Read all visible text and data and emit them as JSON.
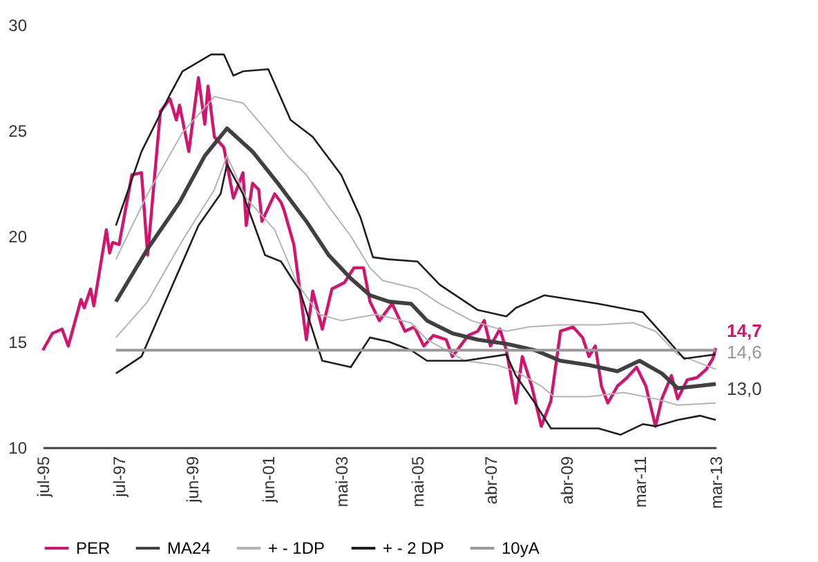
{
  "chart_data": {
    "type": "line",
    "ylim": [
      10,
      30
    ],
    "yticks": [
      10,
      15,
      20,
      25,
      30
    ],
    "xlim": [
      "1995-07",
      "2013-03"
    ],
    "xticks": [
      {
        "value": "1995-07",
        "label": "jul-95"
      },
      {
        "value": "1997-07",
        "label": "jul-97"
      },
      {
        "value": "1999-06",
        "label": "jun-99"
      },
      {
        "value": "2001-06",
        "label": "jun-01"
      },
      {
        "value": "2003-05",
        "label": "mai-03"
      },
      {
        "value": "2005-05",
        "label": "mai-05"
      },
      {
        "value": "2007-04",
        "label": "abr-07"
      },
      {
        "value": "2009-04",
        "label": "abr-09"
      },
      {
        "value": "2011-03",
        "label": "mar-11"
      },
      {
        "value": "2013-03",
        "label": "mar-13"
      }
    ],
    "legend": "bottom",
    "annotations": [
      {
        "text": "14,7",
        "x": "2013-03",
        "y": 14.7
      },
      {
        "text": "14,6",
        "x": "2013-03",
        "y": 14.6
      },
      {
        "text": "13,0",
        "x": "2013-03",
        "y": 13.0
      }
    ],
    "series": [
      {
        "name": "PER",
        "color": "#d4136f",
        "x": [
          "1995-07",
          "1995-10",
          "1996-01",
          "1996-03",
          "1996-07",
          "1996-08",
          "1996-10",
          "1996-11",
          "1997-03",
          "1997-04",
          "1997-05",
          "1997-07",
          "1997-11",
          "1998-02",
          "1998-04",
          "1998-08",
          "1998-11",
          "1999-01",
          "1999-02",
          "1999-05",
          "1999-08",
          "1999-10",
          "1999-11",
          "2000-01",
          "2000-04",
          "2000-07",
          "2000-10",
          "2000-11",
          "2001-01",
          "2001-03",
          "2001-04",
          "2001-08",
          "2001-10",
          "2001-11",
          "2002-02",
          "2002-06",
          "2002-08",
          "2002-11",
          "2003-02",
          "2003-06",
          "2003-09",
          "2003-12",
          "2004-02",
          "2004-05",
          "2004-09",
          "2005-01",
          "2005-04",
          "2005-07",
          "2005-10",
          "2006-02",
          "2006-04",
          "2006-09",
          "2006-12",
          "2007-02",
          "2007-04",
          "2007-07",
          "2007-09",
          "2007-12",
          "2008-02",
          "2008-05",
          "2008-08",
          "2008-11",
          "2009-02",
          "2009-06",
          "2009-09",
          "2009-11",
          "2010-01",
          "2010-03",
          "2010-05",
          "2010-08",
          "2010-11",
          "2011-02",
          "2011-05",
          "2011-08",
          "2011-10",
          "2012-01",
          "2012-03",
          "2012-06",
          "2012-09",
          "2012-12",
          "2013-02",
          "2013-03"
        ],
        "values": [
          14.6,
          15.4,
          15.6,
          14.8,
          17.0,
          16.6,
          17.5,
          16.7,
          20.3,
          19.2,
          19.7,
          19.6,
          22.9,
          23.0,
          19.1,
          25.9,
          26.5,
          25.5,
          26.2,
          24.0,
          27.5,
          25.3,
          27.1,
          24.7,
          24.2,
          21.8,
          23.0,
          20.5,
          22.5,
          22.2,
          20.7,
          22.0,
          21.6,
          21.2,
          19.6,
          15.1,
          17.4,
          15.6,
          17.5,
          17.8,
          18.5,
          18.5,
          16.9,
          16.0,
          16.8,
          15.5,
          15.7,
          14.8,
          15.3,
          15.1,
          14.3,
          15.3,
          15.5,
          16.0,
          14.8,
          15.6,
          14.6,
          12.1,
          14.3,
          12.9,
          11.0,
          12.2,
          15.5,
          15.7,
          15.2,
          14.3,
          14.8,
          12.9,
          12.1,
          12.9,
          13.3,
          13.8,
          12.9,
          11.0,
          12.3,
          13.4,
          12.3,
          13.2,
          13.3,
          13.7,
          14.2,
          14.7
        ]
      },
      {
        "name": "MA24",
        "color": "#404040",
        "x": [
          "1997-06",
          "1998-04",
          "1999-02",
          "1999-10",
          "2000-05",
          "2001-01",
          "2001-09",
          "2002-06",
          "2003-01",
          "2003-08",
          "2004-02",
          "2004-08",
          "2005-03",
          "2005-08",
          "2006-04",
          "2006-12",
          "2007-09",
          "2008-06",
          "2009-02",
          "2009-11",
          "2010-08",
          "2011-03",
          "2011-10",
          "2012-03",
          "2012-09",
          "2013-03"
        ],
        "values": [
          16.9,
          19.4,
          21.6,
          23.8,
          25.1,
          24.0,
          22.5,
          20.7,
          19.1,
          18.0,
          17.2,
          16.9,
          16.8,
          16.0,
          15.4,
          15.1,
          14.9,
          14.6,
          14.1,
          13.9,
          13.6,
          14.1,
          13.5,
          12.8,
          12.9,
          13.0
        ]
      },
      {
        "name": "+ - 1DP",
        "color": "#b4b4b4",
        "x": [
          "1997-06",
          "1998-04",
          "1999-03",
          "2000-01",
          "2000-10",
          "2001-06",
          "2001-12",
          "2002-06",
          "2003-01",
          "2003-08",
          "2004-02",
          "2004-06",
          "2005-05",
          "2005-12",
          "2006-10",
          "2007-09",
          "2008-04",
          "2009-02",
          "2010-02",
          "2011-01",
          "2011-08",
          "2012-03",
          "2013-03"
        ],
        "values": [
          18.9,
          22.0,
          24.9,
          26.6,
          26.3,
          24.9,
          23.8,
          22.9,
          21.4,
          20.0,
          18.5,
          17.9,
          17.5,
          16.8,
          16.0,
          15.5,
          15.7,
          15.8,
          15.8,
          15.9,
          15.5,
          14.4,
          13.7
        ]
      },
      {
        "color": "#b4b4b4",
        "x": [
          "1997-06",
          "1998-04",
          "1999-03",
          "2000-01",
          "2000-05",
          "2000-11",
          "2001-08",
          "2002-03",
          "2002-10",
          "2003-05",
          "2004-04",
          "2005-03",
          "2005-08",
          "2006-08",
          "2007-06",
          "2007-12",
          "2008-08",
          "2008-12",
          "2009-11",
          "2010-10",
          "2011-08",
          "2012-03",
          "2013-03"
        ],
        "values": [
          15.2,
          16.9,
          19.8,
          22.2,
          23.8,
          21.8,
          20.3,
          17.8,
          16.3,
          16.0,
          16.3,
          15.9,
          15.1,
          14.1,
          13.9,
          13.6,
          12.9,
          12.4,
          12.4,
          12.6,
          12.3,
          12.0,
          12.1
        ]
      },
      {
        "name": "+ - 2 DP",
        "color": "#1e1e1e",
        "x": [
          "1997-06",
          "1998-02",
          "1998-11",
          "1999-03",
          "1999-12",
          "2000-04",
          "2000-07",
          "2000-10",
          "2001-06",
          "2002-01",
          "2002-08",
          "2003-05",
          "2003-11",
          "2004-03",
          "2004-08",
          "2005-05",
          "2005-12",
          "2006-12",
          "2007-09",
          "2007-12",
          "2008-09",
          "2010-02",
          "2011-04",
          "2011-10",
          "2012-05",
          "2013-03"
        ],
        "values": [
          20.5,
          24.0,
          26.7,
          27.8,
          28.6,
          28.6,
          27.6,
          27.8,
          27.9,
          25.5,
          24.7,
          22.9,
          20.9,
          19.0,
          18.9,
          18.8,
          17.7,
          16.5,
          16.2,
          16.6,
          17.2,
          16.8,
          16.4,
          15.4,
          14.2,
          14.4
        ]
      },
      {
        "color": "#1e1e1e",
        "x": [
          "1997-06",
          "1998-02",
          "1998-11",
          "1999-08",
          "2000-03",
          "2000-05",
          "2000-10",
          "2001-05",
          "2001-10",
          "2002-04",
          "2002-11",
          "2003-08",
          "2004-02",
          "2004-08",
          "2005-03",
          "2005-08",
          "2006-08",
          "2007-09",
          "2007-12",
          "2008-06",
          "2008-11",
          "2010-02",
          "2010-09",
          "2011-04",
          "2011-08",
          "2012-03",
          "2012-10",
          "2013-03"
        ],
        "values": [
          13.5,
          14.3,
          17.4,
          20.5,
          22.0,
          23.4,
          22.0,
          19.1,
          18.8,
          17.4,
          14.1,
          13.8,
          15.2,
          15.0,
          14.6,
          14.1,
          14.1,
          14.4,
          13.4,
          12.1,
          10.9,
          10.9,
          10.6,
          11.1,
          11.0,
          11.3,
          11.5,
          11.3
        ]
      },
      {
        "name": "10yA",
        "color": "#999999",
        "x": [
          "1997-06",
          "2013-03"
        ],
        "values": [
          14.6,
          14.6
        ]
      }
    ]
  }
}
